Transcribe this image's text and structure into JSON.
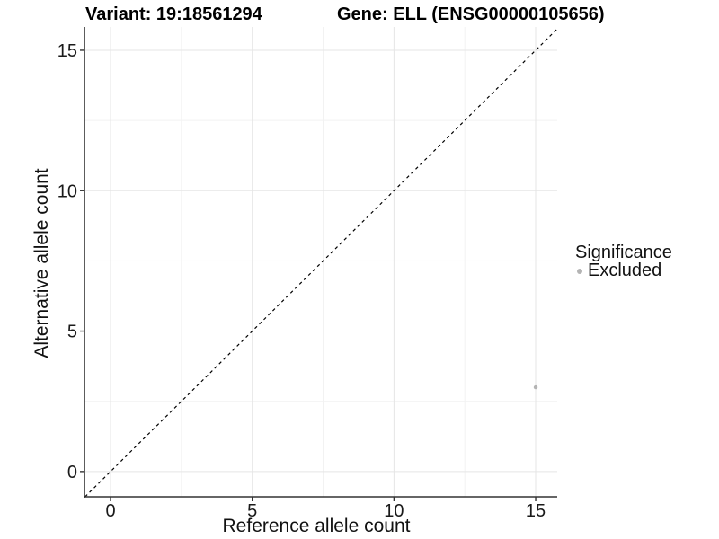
{
  "header": {
    "variant_title": "Variant: 19:18561294",
    "gene_title": "Gene: ELL (ENSG00000105656)"
  },
  "chart_data": {
    "type": "scatter",
    "title": "Variant: 19:18561294   Gene: ELL (ENSG00000105656)",
    "xlabel": "Reference allele count",
    "ylabel": "Alternative allele count",
    "xlim": [
      -0.92,
      15.76
    ],
    "ylim": [
      -0.9,
      15.83
    ],
    "x_ticks": [
      0,
      5,
      10,
      15
    ],
    "y_ticks": [
      0,
      5,
      10,
      15
    ],
    "x_tick_labels": [
      "0",
      "5",
      "10",
      "15"
    ],
    "y_tick_labels": [
      "0",
      "5",
      "10",
      "15"
    ],
    "x_minor_ticks": [
      2.5,
      7.5,
      12.5
    ],
    "y_minor_ticks": [
      2.5,
      7.5,
      12.5
    ],
    "grid": true,
    "reference_line": {
      "slope": 1,
      "intercept": 0,
      "linetype": "dashed",
      "color": "#000000"
    },
    "series": [
      {
        "name": "Excluded",
        "color": "#b4b4b4",
        "point_radius": 2.2,
        "points": [
          {
            "x": 15,
            "y": 3
          }
        ]
      }
    ],
    "legend": {
      "position": "right",
      "title": "Significance",
      "entries": [
        {
          "label": "Excluded",
          "color": "#b4b4b4"
        }
      ]
    }
  },
  "colors": {
    "background": "#ffffff",
    "axis_line": "#333333",
    "grid_major": "#e5e5e5",
    "grid_minor": "#f2f2f2",
    "tick_label": "#1a1a1a"
  }
}
